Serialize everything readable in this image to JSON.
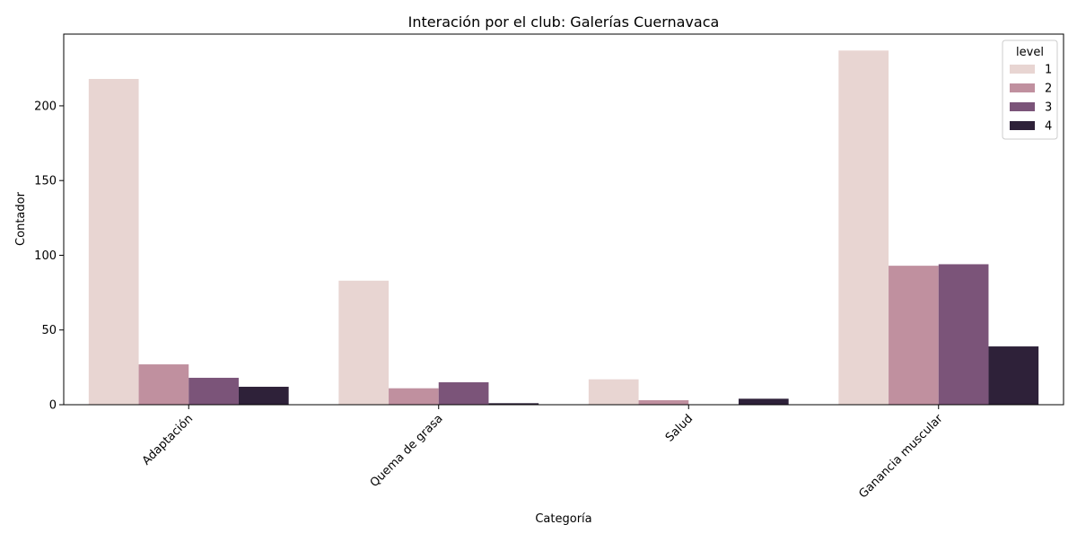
{
  "chart_data": {
    "type": "bar",
    "title": "Interación por el club: Galerías Cuernavaca",
    "xlabel": "Categoría",
    "ylabel": "Contador",
    "categories": [
      "Adaptación",
      "Quema de grasa",
      "Salud",
      "Ganancia muscular"
    ],
    "series": [
      {
        "name": "1",
        "color": "#e8d5d2",
        "values": [
          218,
          83,
          17,
          237
        ]
      },
      {
        "name": "2",
        "color": "#c0909f",
        "values": [
          27,
          11,
          3,
          93
        ]
      },
      {
        "name": "3",
        "color": "#7b5479",
        "values": [
          18,
          15,
          0,
          94
        ]
      },
      {
        "name": "4",
        "color": "#2e2139",
        "values": [
          12,
          1,
          4,
          39
        ]
      }
    ],
    "ylim": [
      0,
      248
    ],
    "yticks": [
      0,
      50,
      100,
      150,
      200
    ],
    "legend": {
      "title": "level",
      "placement": "top-right"
    },
    "grid": false
  }
}
